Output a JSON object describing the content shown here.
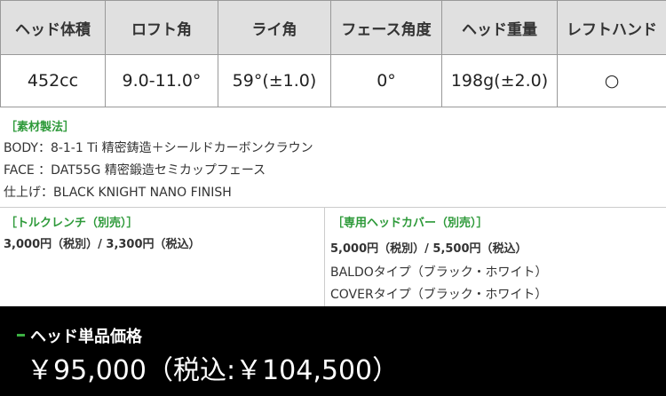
{
  "table": {
    "headers": [
      "ヘッド体積",
      "ロフト角",
      "ライ角",
      "フェース角度",
      "ヘッド重量",
      "レフトハンド"
    ],
    "rows": [
      [
        "452cc",
        "9.0-11.0°",
        "59°(±1.0)",
        "0°",
        "198g(±2.0)",
        "○"
      ]
    ]
  },
  "materials": {
    "label": "［素材製法］",
    "lines": [
      "BODY：8-1-1 Ti 精密鋳造＋シールドカーボンクラウン",
      "FACE ：DAT55G 精密鍛造セミカップフェース",
      "仕上げ：BLACK KNIGHT NANO FINISH"
    ]
  },
  "torque_wrench": {
    "label": "［トルクレンチ（別売）］",
    "price": "3,000円（税別）/ 3,300円（税込）"
  },
  "head_cover": {
    "label": "［専用ヘッドカバー（別売）］",
    "price": "5,000円（税別）/ 5,500円（税込）",
    "types": [
      "BALDOタイプ（ブラック・ホワイト）",
      "COVERタイプ（ブラック・ホワイト）"
    ]
  },
  "price": {
    "label": "ヘッド単品価格",
    "value": "￥95,000（税込:￥104,500）"
  }
}
